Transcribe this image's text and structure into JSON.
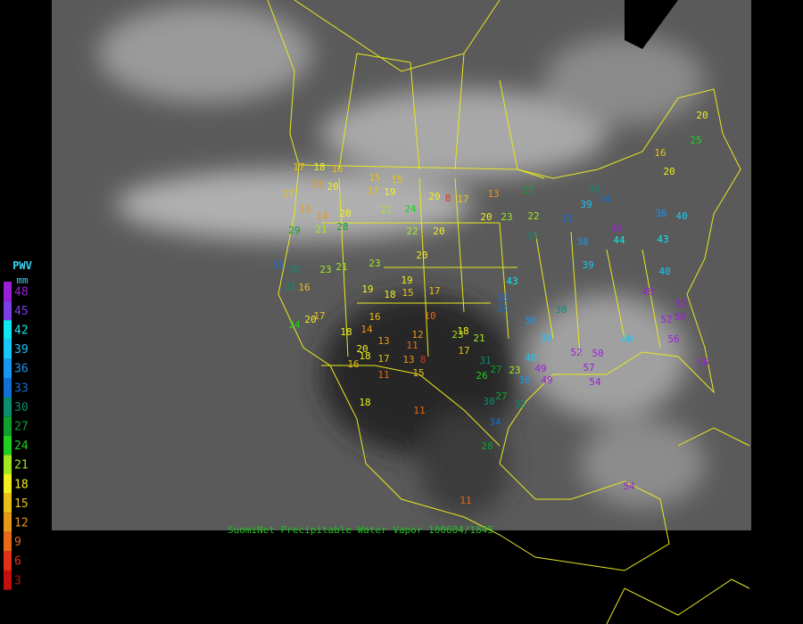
{
  "legend": {
    "title": "PWV",
    "unit": "mm",
    "levels": [
      {
        "value": 48,
        "color": "#9a20d8"
      },
      {
        "value": 45,
        "color": "#7a3ee8"
      },
      {
        "value": 42,
        "color": "#10e8f0"
      },
      {
        "value": 39,
        "color": "#18c8f8"
      },
      {
        "value": 36,
        "color": "#1898f0"
      },
      {
        "value": 33,
        "color": "#1070d8"
      },
      {
        "value": 30,
        "color": "#0c8c70"
      },
      {
        "value": 27,
        "color": "#10a030"
      },
      {
        "value": 24,
        "color": "#20d020"
      },
      {
        "value": 21,
        "color": "#a0e820"
      },
      {
        "value": 18,
        "color": "#f0f020"
      },
      {
        "value": 15,
        "color": "#e8c018"
      },
      {
        "value": 12,
        "color": "#e89818"
      },
      {
        "value": 9,
        "color": "#e86818"
      },
      {
        "value": 6,
        "color": "#e03018"
      },
      {
        "value": 3,
        "color": "#c01010"
      }
    ]
  },
  "footer": "SuomiNet Precipitable Water Vapor 100604/1845",
  "stations": [
    20,
    25,
    16,
    20,
    17,
    16,
    18,
    13,
    20,
    15,
    15,
    17,
    19,
    20,
    17,
    8,
    13,
    20,
    23,
    22,
    27,
    30,
    34,
    39,
    33,
    31,
    21,
    24,
    22,
    20,
    28,
    20,
    13,
    14,
    17,
    29,
    21,
    23,
    21,
    23,
    20,
    17,
    15,
    19,
    18,
    19,
    16,
    30,
    35,
    32,
    24,
    20,
    17,
    16,
    14,
    10,
    12,
    11,
    13,
    18,
    20,
    18,
    17,
    13,
    8,
    16,
    11,
    15,
    23,
    18,
    17,
    21,
    31,
    26,
    27,
    23,
    36,
    40,
    39,
    36,
    30,
    33,
    34,
    43,
    39,
    38,
    44,
    49,
    50,
    52,
    49,
    49,
    57,
    54,
    40,
    52,
    50,
    56,
    48,
    52,
    40,
    56,
    54,
    18,
    11,
    30,
    27,
    32,
    34,
    28,
    11,
    43,
    36,
    40
  ]
}
